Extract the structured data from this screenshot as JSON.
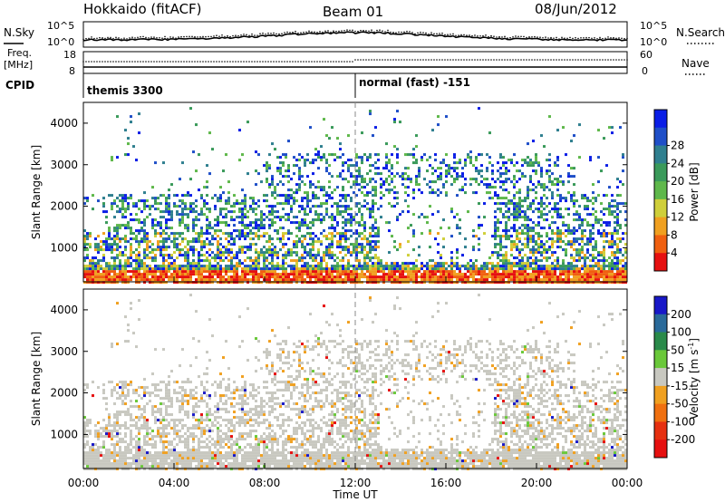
{
  "header": {
    "station": "Hokkaido (fitACF)",
    "beam": "Beam 01",
    "date": "08/Jun/2012"
  },
  "summary_panel": {
    "left_label_top": "N.Sky",
    "left_label_freq": "Freq.",
    "left_label_freq_unit": "[MHz]",
    "left_label_cpid": "CPID",
    "left_ticks_top": [
      "10^5",
      "10^0"
    ],
    "left_ticks_freq": [
      "18",
      "8"
    ],
    "right_ticks_top": [
      "10^5",
      "10^0"
    ],
    "right_ticks_freq": [
      "60",
      "0"
    ],
    "right_label_search": "N.Search",
    "right_label_nave": "Nave",
    "cpid_segments": [
      {
        "label": "themis 3300",
        "start_hour": 0
      },
      {
        "label": "normal (fast) -151",
        "start_hour": 12
      }
    ]
  },
  "chart_data": [
    {
      "type": "heatmap",
      "name": "power",
      "xlabel": "",
      "ylabel": "Slant Range [km]",
      "xlim": [
        0,
        24
      ],
      "ylim": [
        180,
        4500
      ],
      "yticks": [
        "1000",
        "2000",
        "3000",
        "4000"
      ],
      "colorbar": {
        "label": "Power [dB]",
        "ticks": [
          "4",
          "8",
          "12",
          "16",
          "20",
          "24",
          "28"
        ],
        "colors": [
          "#0a1ee6",
          "#1f4fc8",
          "#2f7f8f",
          "#3a9a5a",
          "#5fb84b",
          "#cfcf3a",
          "#f0a020",
          "#f06010",
          "#e61010"
        ]
      }
    },
    {
      "type": "heatmap",
      "name": "velocity",
      "xlabel": "Time UT",
      "ylabel": "Slant Range [km]",
      "xlim": [
        0,
        24
      ],
      "ylim": [
        180,
        4500
      ],
      "xticks": [
        "00:00",
        "04:00",
        "08:00",
        "12:00",
        "16:00",
        "20:00",
        "00:00"
      ],
      "yticks": [
        "1000",
        "2000",
        "3000",
        "4000"
      ],
      "colorbar": {
        "label": "Velocity [m s",
        "label_sup": "-1",
        "label_end": "]",
        "ticks": [
          "200",
          "100",
          "50",
          "15",
          "-15",
          "-50",
          "-100",
          "-200"
        ],
        "colors": [
          "#1818c8",
          "#2a6a9a",
          "#2a8a4a",
          "#6ac83a",
          "#c8c8c0",
          "#f0a020",
          "#f07010",
          "#e63010",
          "#e61010"
        ]
      }
    }
  ]
}
